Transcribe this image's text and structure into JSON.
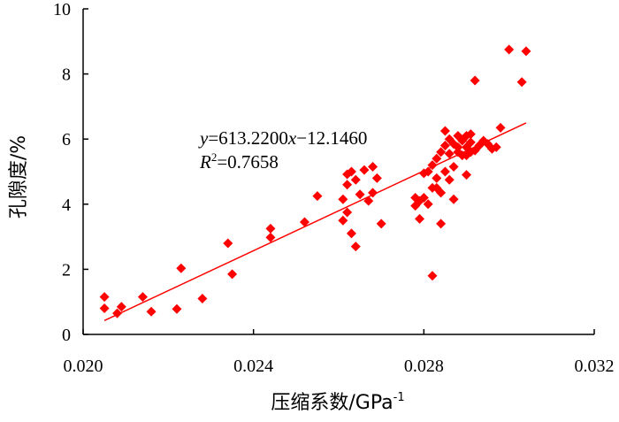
{
  "chart_data": {
    "type": "scatter",
    "xlabel": "压缩系数/GPa",
    "xlabel_sup": "-1",
    "ylabel": "孔隙度/%",
    "xlim": [
      0.02,
      0.032
    ],
    "ylim": [
      0,
      10
    ],
    "xticks": [
      0.02,
      0.024,
      0.028,
      0.032
    ],
    "xtick_labels": [
      "0.020",
      "0.024",
      "0.028",
      "0.032"
    ],
    "yticks": [
      0,
      2,
      4,
      6,
      8,
      10
    ],
    "ytick_labels": [
      "0",
      "2",
      "4",
      "6",
      "8",
      "10"
    ],
    "grid": false,
    "marker_color": "#ff0000",
    "line_color": "#ff0000",
    "trendline": {
      "slope": 613.22,
      "intercept": -12.146,
      "x_start": 0.0205,
      "x_end": 0.0304,
      "equation_label": {
        "y": "y",
        "eq1": "=613.2200",
        "x": "x",
        "eq2": "−12.1460",
        "r": "R",
        "r_sup": "2",
        "r_val": "=0.7658"
      }
    },
    "points": [
      [
        0.0205,
        1.15
      ],
      [
        0.0205,
        0.8
      ],
      [
        0.0208,
        0.65
      ],
      [
        0.0209,
        0.85
      ],
      [
        0.0214,
        1.15
      ],
      [
        0.0216,
        0.7
      ],
      [
        0.0222,
        0.78
      ],
      [
        0.0223,
        2.03
      ],
      [
        0.0228,
        1.1
      ],
      [
        0.0234,
        2.8
      ],
      [
        0.0235,
        1.85
      ],
      [
        0.0244,
        3.25
      ],
      [
        0.0244,
        2.98
      ],
      [
        0.0252,
        3.45
      ],
      [
        0.0255,
        4.25
      ],
      [
        0.0261,
        3.5
      ],
      [
        0.0261,
        4.15
      ],
      [
        0.0262,
        3.75
      ],
      [
        0.0262,
        4.6
      ],
      [
        0.0262,
        4.92
      ],
      [
        0.0263,
        5.0
      ],
      [
        0.0263,
        3.1
      ],
      [
        0.0264,
        2.7
      ],
      [
        0.0264,
        4.75
      ],
      [
        0.0265,
        4.3
      ],
      [
        0.0266,
        5.05
      ],
      [
        0.0267,
        4.1
      ],
      [
        0.0268,
        5.15
      ],
      [
        0.0268,
        4.35
      ],
      [
        0.0269,
        4.8
      ],
      [
        0.027,
        3.4
      ],
      [
        0.0278,
        4.2
      ],
      [
        0.0278,
        3.95
      ],
      [
        0.0279,
        3.55
      ],
      [
        0.0279,
        4.1
      ],
      [
        0.028,
        4.2
      ],
      [
        0.028,
        4.95
      ],
      [
        0.0281,
        4.0
      ],
      [
        0.0281,
        5.0
      ],
      [
        0.0282,
        4.5
      ],
      [
        0.0282,
        1.8
      ],
      [
        0.0282,
        5.2
      ],
      [
        0.0283,
        4.5
      ],
      [
        0.0283,
        4.8
      ],
      [
        0.0283,
        5.4
      ],
      [
        0.0284,
        4.35
      ],
      [
        0.0284,
        5.6
      ],
      [
        0.0284,
        3.4
      ],
      [
        0.0285,
        5.0
      ],
      [
        0.0285,
        5.8
      ],
      [
        0.0285,
        6.25
      ],
      [
        0.0286,
        4.75
      ],
      [
        0.0286,
        5.55
      ],
      [
        0.0286,
        6.0
      ],
      [
        0.0287,
        5.15
      ],
      [
        0.0287,
        5.85
      ],
      [
        0.0287,
        4.15
      ],
      [
        0.0288,
        5.6
      ],
      [
        0.0288,
        6.1
      ],
      [
        0.0288,
        5.75
      ],
      [
        0.0289,
        5.5
      ],
      [
        0.0289,
        5.95
      ],
      [
        0.029,
        6.1
      ],
      [
        0.029,
        5.75
      ],
      [
        0.029,
        5.5
      ],
      [
        0.029,
        4.9
      ],
      [
        0.0291,
        5.9
      ],
      [
        0.0291,
        6.15
      ],
      [
        0.0291,
        5.6
      ],
      [
        0.0292,
        5.65
      ],
      [
        0.0292,
        7.8
      ],
      [
        0.0293,
        5.8
      ],
      [
        0.0294,
        5.95
      ],
      [
        0.0295,
        5.85
      ],
      [
        0.0296,
        5.7
      ],
      [
        0.0297,
        5.75
      ],
      [
        0.0298,
        6.35
      ],
      [
        0.03,
        8.75
      ],
      [
        0.0303,
        7.75
      ],
      [
        0.0304,
        8.7
      ]
    ]
  }
}
